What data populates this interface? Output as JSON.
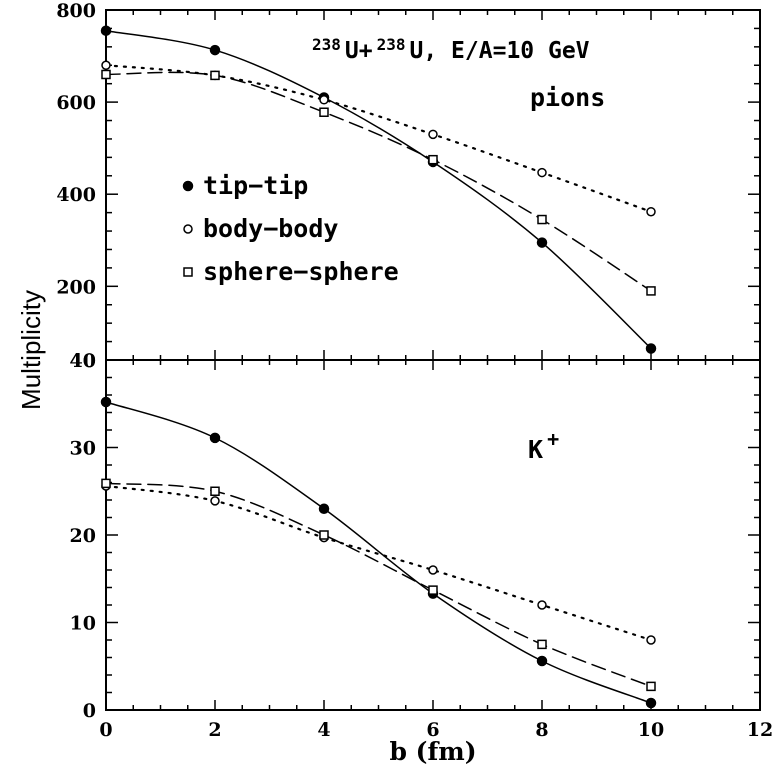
{
  "chart_data": [
    {
      "type": "line",
      "panel": "top",
      "annotation": "pions",
      "reaction": {
        "mass1": "238",
        "sym1": "U+",
        "mass2": "238",
        "sym2": "U, E/A=10 GeV"
      },
      "xlim": [
        0,
        12
      ],
      "ylim": [
        40,
        800
      ],
      "x_ticks": [],
      "y_ticks": [
        "800",
        "600",
        "400",
        "200",
        "40"
      ],
      "y_tick_values": [
        800,
        600,
        400,
        200,
        40
      ],
      "legend": {
        "placement": "center-left",
        "entries": [
          {
            "label": "tip−tip",
            "series": 0
          },
          {
            "label": "body−body",
            "series": 1
          },
          {
            "label": "sphere−sphere",
            "series": 2
          }
        ]
      },
      "series": [
        {
          "name": "tip−tip",
          "marker": "filled-circle",
          "line": "solid",
          "x": [
            0,
            2,
            4,
            6,
            8,
            10
          ],
          "y": [
            755,
            713,
            610,
            470,
            295,
            65
          ]
        },
        {
          "name": "body−body",
          "marker": "open-circle",
          "line": "dotted",
          "x": [
            0,
            2,
            4,
            6,
            8,
            10
          ],
          "y": [
            680,
            658,
            605,
            530,
            447,
            362
          ]
        },
        {
          "name": "sphere−sphere",
          "marker": "open-square",
          "line": "dashed",
          "x": [
            0,
            2,
            4,
            6,
            8,
            10
          ],
          "y": [
            660,
            658,
            578,
            475,
            345,
            190
          ]
        }
      ]
    },
    {
      "type": "line",
      "panel": "bottom",
      "annotation_base": "K",
      "annotation_sup": "+",
      "xlim": [
        0,
        12
      ],
      "ylim": [
        0,
        40
      ],
      "xlabel": "b (fm)",
      "x_ticks": [
        "0",
        "2",
        "4",
        "6",
        "8",
        "10",
        "12"
      ],
      "x_tick_values": [
        0,
        2,
        4,
        6,
        8,
        10,
        12
      ],
      "y_ticks": [
        "40",
        "30",
        "20",
        "10",
        "0"
      ],
      "y_tick_values": [
        40,
        30,
        20,
        10,
        0
      ],
      "series": [
        {
          "name": "tip−tip",
          "marker": "filled-circle",
          "line": "solid",
          "x": [
            0,
            2,
            4,
            6,
            8,
            10
          ],
          "y": [
            35.2,
            31.1,
            23.0,
            13.3,
            5.6,
            0.8
          ]
        },
        {
          "name": "body−body",
          "marker": "open-circle",
          "line": "dotted",
          "x": [
            0,
            2,
            4,
            6,
            8,
            10
          ],
          "y": [
            25.6,
            23.9,
            19.7,
            16.0,
            12.0,
            8.0
          ]
        },
        {
          "name": "sphere−sphere",
          "marker": "open-square",
          "line": "dashed",
          "x": [
            0,
            2,
            4,
            6,
            8,
            10
          ],
          "y": [
            25.9,
            25.0,
            20.0,
            13.7,
            7.5,
            2.7
          ]
        }
      ]
    }
  ],
  "ylabel": "Multiplicity"
}
